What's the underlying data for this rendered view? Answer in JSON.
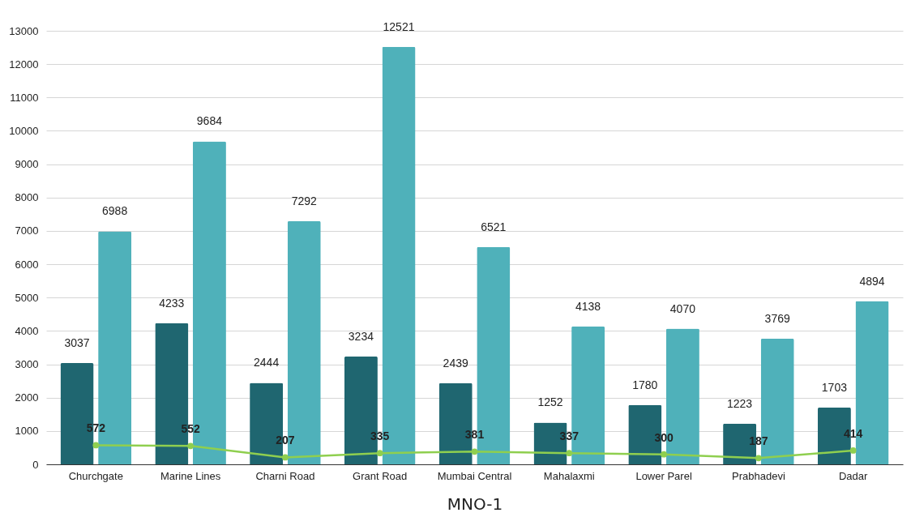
{
  "chart_data": {
    "type": "bar",
    "xlabel": "MNO-1",
    "categories": [
      "Churchgate",
      "Marine Lines",
      "Charni Road",
      "Grant Road",
      "Mumbai Central",
      "Mahalaxmi",
      "Lower Parel",
      "Prabhadevi",
      "Dadar"
    ],
    "series": [
      {
        "color": "#1f6670",
        "values": [
          3037,
          4233,
          2444,
          3234,
          2439,
          1252,
          1780,
          1223,
          1703
        ]
      },
      {
        "color": "#4fb1ba",
        "values": [
          6988,
          9684,
          7292,
          12521,
          6521,
          4138,
          4070,
          3769,
          4894
        ]
      },
      {
        "type": "line",
        "color": "#8fcf4f",
        "values": [
          572,
          552,
          207,
          335,
          381,
          337,
          300,
          187,
          414
        ]
      }
    ],
    "ylim": [
      0,
      13000
    ],
    "yticks": [
      0,
      1000,
      2000,
      3000,
      4000,
      5000,
      6000,
      7000,
      8000,
      9000,
      10000,
      11000,
      12000,
      13000
    ],
    "grid": "y",
    "data_labels": true,
    "marker": "circle",
    "line_style": "solid"
  }
}
